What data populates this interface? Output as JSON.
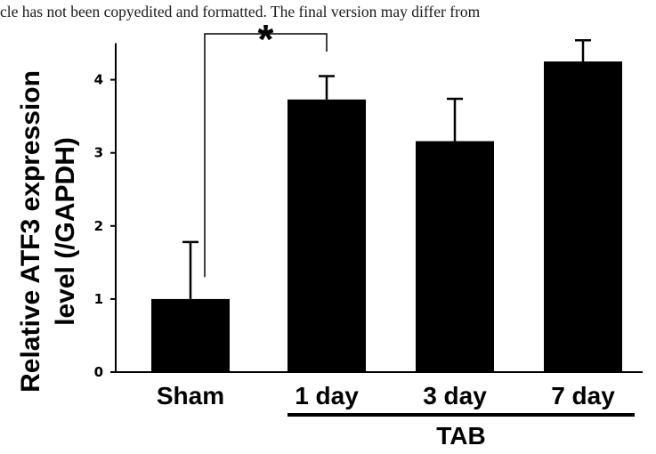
{
  "header_text": "cle has not been copyedited and formatted. The final version may differ from",
  "chart_data": {
    "type": "bar",
    "categories": [
      "Sham",
      "1 day",
      "3 day",
      "7 day"
    ],
    "values": [
      1.0,
      3.73,
      3.16,
      4.25
    ],
    "errors": [
      0.78,
      0.32,
      0.58,
      0.29
    ],
    "title": "",
    "xlabel": "",
    "ylabel_lines": [
      "Relative ATF3 expression",
      "level (/GAPDH)"
    ],
    "ylim": [
      0,
      4.5
    ],
    "yticks": [
      "0",
      "1",
      "2",
      "3",
      "4"
    ],
    "group_label": "TAB",
    "group_members": [
      "1 day",
      "3 day",
      "7 day"
    ],
    "significance": {
      "from": "Sham",
      "to": "1 day",
      "label": "*"
    },
    "bar_color": "#000000",
    "grid": false
  }
}
